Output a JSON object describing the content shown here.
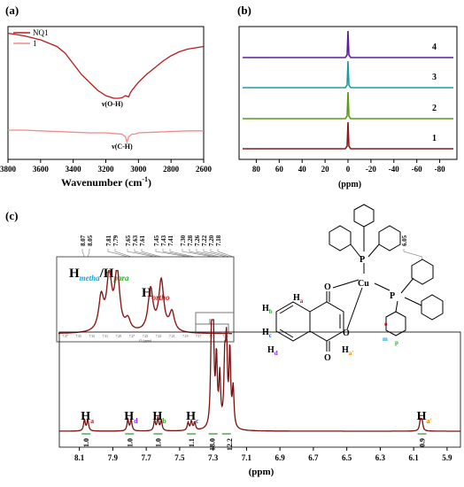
{
  "panels": {
    "a": {
      "label": "(a)"
    },
    "b": {
      "label": "(b)"
    },
    "c": {
      "label": "(c)"
    }
  },
  "colors": {
    "nq1": "#b71c1c",
    "complex1": "#f28b8b",
    "trace4": "#5a1ea0",
    "trace3": "#1f9aa0",
    "trace2": "#5c9a1a",
    "trace1": "#8b1a1a",
    "nmr": "#7a1010",
    "integration": "#2e8b2e",
    "h_metha": "#1aa0e6",
    "h_para": "#2eaa2e",
    "h_ortho": "#d01818",
    "h_a": "#c81818",
    "h_d": "#8a2be2",
    "h_b": "#2eaa2e",
    "h_c": "#1e5cc8",
    "h_a_prime": "#e08a00",
    "gray": "#777777"
  },
  "chart_data": [
    {
      "panel": "a",
      "type": "line",
      "xlabel": "Wavenumber (cm",
      "xlabel_sup": "-1",
      "xlabel_close": ")",
      "xlim": [
        3800,
        2600
      ],
      "xticks": [
        "3800",
        "3600",
        "3400",
        "3200",
        "3000",
        "2800",
        "2600"
      ],
      "series": [
        {
          "name": "NQ1",
          "color": "#b71c1c",
          "x": [
            3800,
            3700,
            3600,
            3500,
            3450,
            3400,
            3350,
            3300,
            3250,
            3200,
            3150,
            3120,
            3100,
            3080,
            3060,
            3050,
            3040,
            3000,
            2950,
            2900,
            2850,
            2800,
            2750,
            2700,
            2650,
            2600
          ],
          "y": [
            0.95,
            0.93,
            0.9,
            0.85,
            0.8,
            0.72,
            0.64,
            0.58,
            0.52,
            0.48,
            0.46,
            0.46,
            0.465,
            0.48,
            0.47,
            0.5,
            0.52,
            0.58,
            0.64,
            0.69,
            0.74,
            0.78,
            0.81,
            0.83,
            0.84,
            0.85
          ]
        },
        {
          "name": "1",
          "color": "#f28b8b",
          "x": [
            3800,
            3700,
            3600,
            3500,
            3400,
            3300,
            3200,
            3150,
            3100,
            3080,
            3070,
            3060,
            3050,
            3040,
            3020,
            3000,
            2900,
            2800,
            2700,
            2600
          ],
          "y": [
            0.22,
            0.22,
            0.215,
            0.21,
            0.205,
            0.2,
            0.2,
            0.195,
            0.19,
            0.17,
            0.13,
            0.17,
            0.18,
            0.19,
            0.19,
            0.2,
            0.205,
            0.21,
            0.215,
            0.215
          ]
        }
      ],
      "annotations": [
        {
          "text": "ν(O-H)",
          "x": 3160,
          "y": 0.4
        },
        {
          "text": "ν(C-H)",
          "x": 3100,
          "y": 0.08
        }
      ]
    },
    {
      "panel": "b",
      "type": "line",
      "xlabel": "(ppm)",
      "xlim": [
        95,
        -95
      ],
      "xticks": [
        "80",
        "60",
        "40",
        "20",
        "0",
        "-20",
        "-40",
        "-60",
        "-80"
      ],
      "xtick_values": [
        80,
        60,
        40,
        20,
        0,
        -20,
        -40,
        -60,
        -80
      ],
      "series": [
        {
          "name": "4",
          "peak_ppm": 0,
          "color": "#5a1ea0"
        },
        {
          "name": "3",
          "peak_ppm": 0,
          "color": "#1f9aa0"
        },
        {
          "name": "2",
          "peak_ppm": 0,
          "color": "#5c9a1a"
        },
        {
          "name": "1",
          "peak_ppm": 0,
          "color": "#8b1a1a"
        }
      ]
    },
    {
      "panel": "c",
      "type": "line",
      "xlabel": "(ppm)",
      "xlim": [
        8.22,
        5.82
      ],
      "xticks": [
        "8.1",
        "7.9",
        "7.7",
        "7.5",
        "7.3",
        "7.1",
        "6.9",
        "6.7",
        "6.5",
        "6.3",
        "6.1",
        "5.9"
      ],
      "xtick_values": [
        8.1,
        7.9,
        7.7,
        7.5,
        7.3,
        7.1,
        6.9,
        6.7,
        6.5,
        6.3,
        6.1,
        5.9
      ],
      "peak_labels": [
        "8.07",
        "8.05",
        "7.81",
        "7.79",
        "7.65",
        "7.63",
        "7.61",
        "7.45",
        "7.43",
        "7.41",
        "7.30",
        "7.28",
        "7.26",
        "7.22",
        "7.20",
        "7.18",
        "6.05"
      ],
      "peaks": [
        {
          "ppm": 8.07,
          "h": 0.1
        },
        {
          "ppm": 8.05,
          "h": 0.1
        },
        {
          "ppm": 7.81,
          "h": 0.1
        },
        {
          "ppm": 7.79,
          "h": 0.1
        },
        {
          "ppm": 7.65,
          "h": 0.09
        },
        {
          "ppm": 7.63,
          "h": 0.11
        },
        {
          "ppm": 7.61,
          "h": 0.09
        },
        {
          "ppm": 7.45,
          "h": 0.07
        },
        {
          "ppm": 7.43,
          "h": 0.08
        },
        {
          "ppm": 7.41,
          "h": 0.07
        },
        {
          "ppm": 7.31,
          "h": 0.72
        },
        {
          "ppm": 7.3,
          "h": 0.95
        },
        {
          "ppm": 7.28,
          "h": 0.6
        },
        {
          "ppm": 7.26,
          "h": 0.45
        },
        {
          "ppm": 7.23,
          "h": 0.55
        },
        {
          "ppm": 7.22,
          "h": 0.7
        },
        {
          "ppm": 7.2,
          "h": 0.68
        },
        {
          "ppm": 7.18,
          "h": 0.35
        },
        {
          "ppm": 6.06,
          "h": 0.09
        },
        {
          "ppm": 6.05,
          "h": 0.09
        }
      ],
      "integrations": [
        {
          "ppm": 8.06,
          "text": "1.0"
        },
        {
          "ppm": 7.8,
          "text": "1.0"
        },
        {
          "ppm": 7.63,
          "text": "1.0"
        },
        {
          "ppm": 7.43,
          "text": "1.1"
        },
        {
          "ppm": 7.3,
          "text": "18.0"
        },
        {
          "ppm": 7.22,
          "text": "12.2"
        },
        {
          "ppm": 6.05,
          "text": "0.9"
        }
      ],
      "proton_labels": [
        {
          "ppm": 8.06,
          "main": "H",
          "sub": "a",
          "color": "#c81818"
        },
        {
          "ppm": 7.8,
          "main": "H",
          "sub": "d",
          "color": "#8a2be2"
        },
        {
          "ppm": 7.63,
          "main": "H",
          "sub": "b",
          "color": "#2eaa2e"
        },
        {
          "ppm": 7.43,
          "main": "H",
          "sub": "c",
          "color": "#1e5cc8"
        },
        {
          "ppm": 6.05,
          "main": "H",
          "sub": "a'",
          "color": "#e08a00"
        }
      ]
    },
    {
      "panel": "c-inset",
      "type": "line",
      "title_h1": "H",
      "title_sub1": "metha",
      "title_slash": "/",
      "title_h2": "H",
      "title_sub2": "para",
      "title_h3": "H",
      "title_sub3": "ortho",
      "xlabel": "f1 (ppm)",
      "xticks": [
        "7.37",
        "7.35",
        "7.33",
        "7.31",
        "7.29",
        "7.27",
        "7.25",
        "7.23",
        "7.21",
        "7.19",
        "7.17",
        "7.15",
        "7.13"
      ]
    }
  ],
  "structure": {
    "labels": {
      "P1": "P",
      "P2": "P",
      "Cu": "Cu",
      "O1": "O",
      "O2": "O",
      "O3": "O",
      "Ha": "H",
      "Ha_sub": "a",
      "Hb": "H",
      "Hb_sub": "b",
      "Hc": "H",
      "Hc_sub": "c",
      "Hd": "H",
      "Hd_sub": "d",
      "Hap": "H",
      "Hap_sub": "a'",
      "o": "o",
      "m": "m",
      "p": "p"
    }
  }
}
